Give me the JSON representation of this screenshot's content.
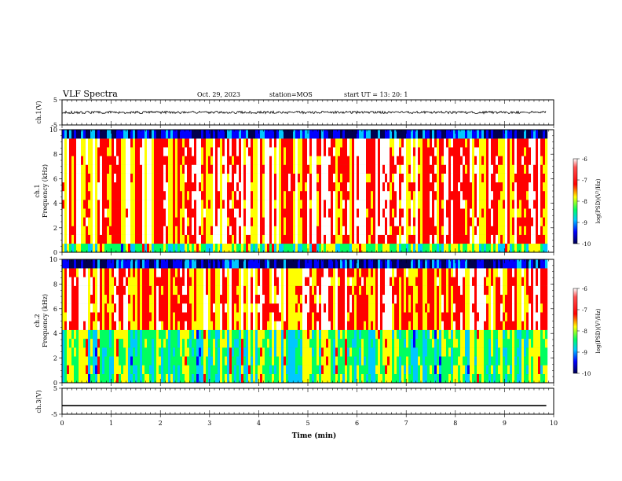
{
  "header": {
    "title": "VLF Spectra",
    "date": "Oct. 29, 2023",
    "station": "station=MOS",
    "start": "start  UT =   13: 20: 1"
  },
  "colorbar": {
    "label": "log(PSD)(V²/Hz)",
    "ticks": [
      "-6",
      "-7",
      "-8",
      "-9",
      "-10"
    ]
  },
  "colors": {
    "spectrogram_scale": [
      "#000050",
      "#0000ff",
      "#00c8ff",
      "#00ff60",
      "#ffff00",
      "#ff0000",
      "#ffffff"
    ]
  },
  "chart_data": [
    {
      "type": "line",
      "title": "",
      "xlabel": "",
      "ylabel": "ch.1(V)",
      "xlim": [
        0,
        10
      ],
      "ylim": [
        -5,
        5
      ],
      "yticks": [
        "5",
        "-5"
      ],
      "series": [
        {
          "x": [
            0,
            9.85
          ],
          "y": [
            0,
            0
          ]
        }
      ]
    },
    {
      "type": "heatmap",
      "ylabel": "ch.1\nFrequency (kHz)",
      "xlim": [
        0,
        10
      ],
      "ylim": [
        0,
        10
      ],
      "yticks": [
        "10",
        "8",
        "6",
        "4",
        "2",
        "0"
      ],
      "z_range": [
        -10,
        -6
      ],
      "data_extent_x": [
        0,
        9.85
      ],
      "dominant_band_khz": [
        0.5,
        9.5
      ]
    },
    {
      "type": "heatmap",
      "ylabel": "ch.2\nFrequency (kHz)",
      "xlim": [
        0,
        10
      ],
      "ylim": [
        0,
        10
      ],
      "yticks": [
        "10",
        "8",
        "6",
        "4",
        "2",
        "0"
      ],
      "z_range": [
        -10,
        -6
      ],
      "data_extent_x": [
        0,
        9.85
      ],
      "dominant_band_khz": [
        4.5,
        9.0
      ]
    },
    {
      "type": "line",
      "ylabel": "ch.3(V)",
      "xlabel": "Time (min)",
      "xlim": [
        0,
        10
      ],
      "ylim": [
        -5,
        5
      ],
      "yticks": [
        "5",
        "-5"
      ],
      "xticks": [
        "0",
        "1",
        "2",
        "3",
        "4",
        "5",
        "6",
        "7",
        "8",
        "9",
        "10"
      ],
      "series": [
        {
          "x": [
            0,
            9.85
          ],
          "y": [
            -1.7,
            -1.7
          ]
        }
      ]
    }
  ]
}
